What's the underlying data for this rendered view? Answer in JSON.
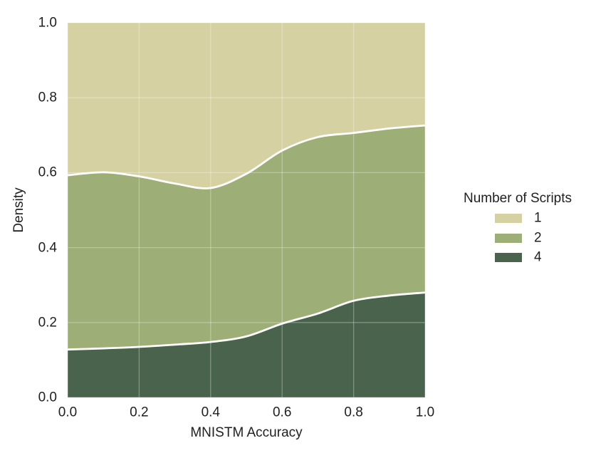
{
  "chart_data": {
    "type": "area",
    "variant": "stacked-fill (normalized density, stacks sum to 1)",
    "title": "",
    "xlabel": "MNISTM Accuracy",
    "ylabel": "Density",
    "xlim": [
      0.0,
      1.0
    ],
    "ylim": [
      0.0,
      1.0
    ],
    "x_ticks": [
      "0.0",
      "0.2",
      "0.4",
      "0.6",
      "0.8",
      "1.0"
    ],
    "y_ticks": [
      "0.0",
      "0.2",
      "0.4",
      "0.6",
      "0.8",
      "1.0"
    ],
    "grid": "on (faint white gridlines over fills)",
    "boundary_stroke_color": "#ffffff",
    "x": [
      0.0,
      0.1,
      0.2,
      0.3,
      0.4,
      0.5,
      0.6,
      0.7,
      0.8,
      0.9,
      1.0
    ],
    "series": [
      {
        "name": "1",
        "color": "#d5d1a2",
        "cumulative_top": [
          1.0,
          1.0,
          1.0,
          1.0,
          1.0,
          1.0,
          1.0,
          1.0,
          1.0,
          1.0,
          1.0
        ],
        "stroke_top": false
      },
      {
        "name": "2",
        "color": "#9dae76",
        "cumulative_top": [
          0.593,
          0.601,
          0.59,
          0.571,
          0.559,
          0.597,
          0.659,
          0.695,
          0.706,
          0.718,
          0.726
        ],
        "stroke_top": true
      },
      {
        "name": "4",
        "color": "#4a634d",
        "cumulative_top": [
          0.128,
          0.131,
          0.135,
          0.141,
          0.148,
          0.163,
          0.197,
          0.224,
          0.258,
          0.272,
          0.28
        ],
        "stroke_top": true
      }
    ],
    "legend": {
      "title": "Number of Scripts",
      "position": "right, outside plot",
      "entries": [
        {
          "label": "1",
          "color": "#d5d1a2"
        },
        {
          "label": "2",
          "color": "#9dae76"
        },
        {
          "label": "4",
          "color": "#4a634d"
        }
      ]
    }
  }
}
